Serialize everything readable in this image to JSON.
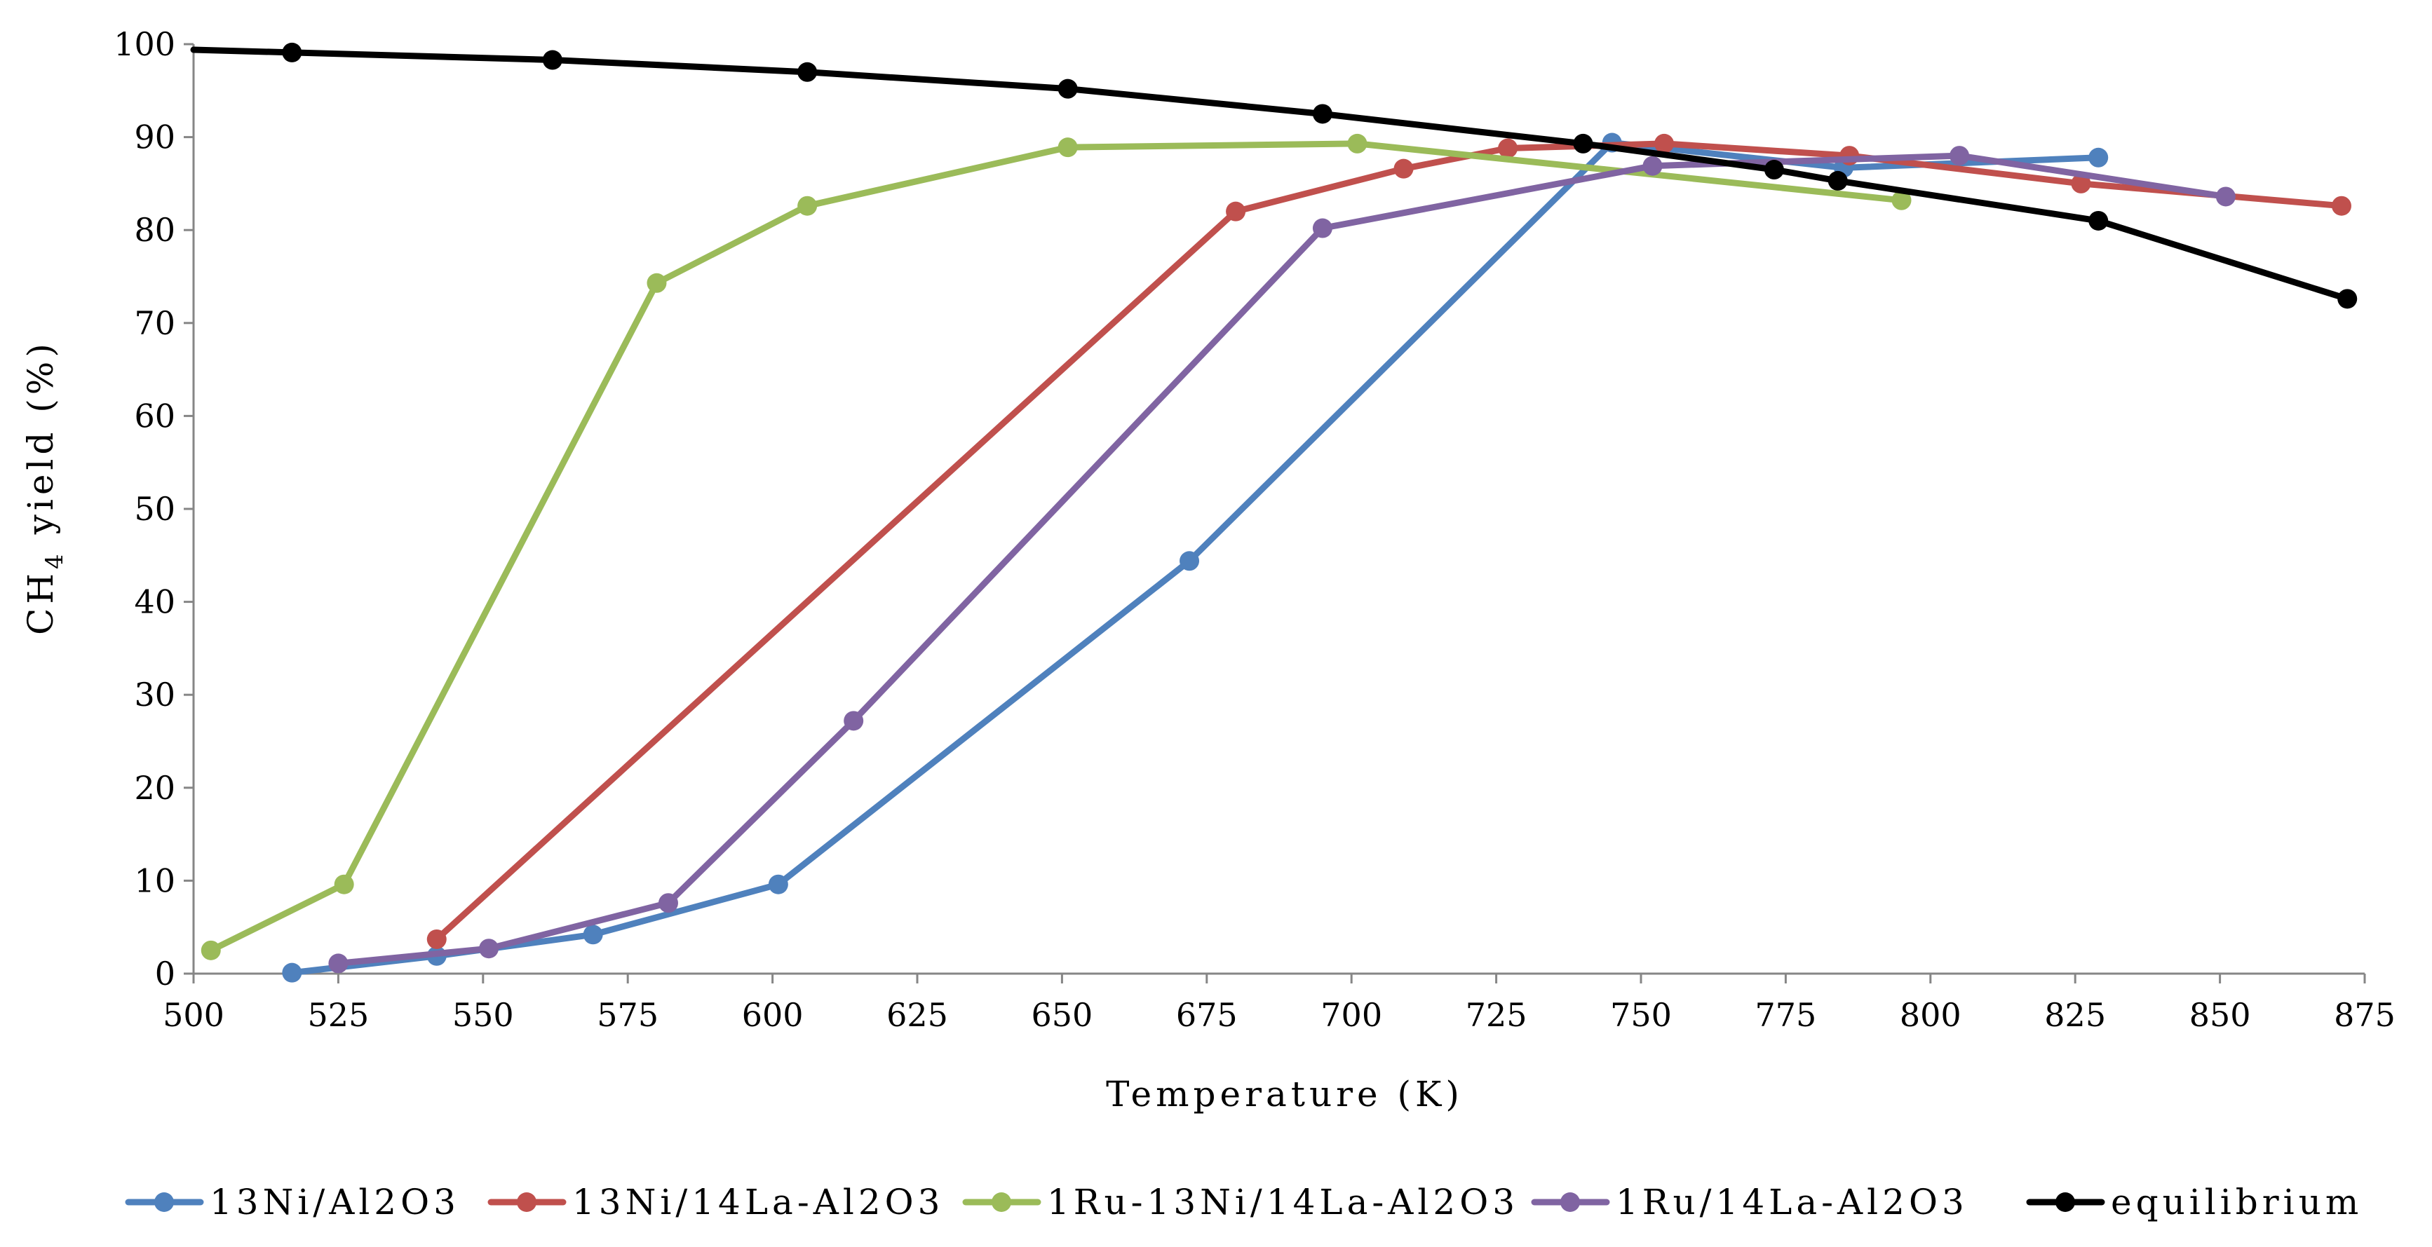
{
  "chart_data": {
    "type": "line",
    "title": "",
    "xlabel": "Temperature (K)",
    "ylabel": "CH4 yield (%)",
    "ylabel_main": "CH",
    "ylabel_sub": "4",
    "ylabel_rest": " yield (%)",
    "xlim": [
      500,
      875
    ],
    "ylim": [
      0,
      100
    ],
    "xticks": [
      500,
      525,
      550,
      575,
      600,
      625,
      650,
      675,
      700,
      725,
      750,
      775,
      800,
      825,
      850,
      875
    ],
    "yticks": [
      0,
      10,
      20,
      30,
      40,
      50,
      60,
      70,
      80,
      90,
      100
    ],
    "grid": false,
    "legend_position": "bottom",
    "series": [
      {
        "name": "13Ni/Al2O3",
        "color": "#4f81bd",
        "points": [
          [
            517,
            0.1
          ],
          [
            542,
            1.9
          ],
          [
            569,
            4.2
          ],
          [
            601,
            9.6
          ],
          [
            672,
            44.4
          ],
          [
            745,
            89.4
          ],
          [
            785,
            86.7
          ],
          [
            829,
            87.8
          ]
        ]
      },
      {
        "name": "13Ni/14La-Al2O3",
        "color": "#c0504d",
        "points": [
          [
            542,
            3.7
          ],
          [
            680,
            82.0
          ],
          [
            709,
            86.6
          ],
          [
            727,
            88.8
          ],
          [
            754,
            89.3
          ],
          [
            786,
            88.0
          ],
          [
            826,
            85.0
          ],
          [
            871,
            82.6
          ]
        ]
      },
      {
        "name": "1Ru-13Ni/14La-Al2O3",
        "color": "#9bbb59",
        "points": [
          [
            503,
            2.5
          ],
          [
            526,
            9.6
          ],
          [
            580,
            74.3
          ],
          [
            606,
            82.6
          ],
          [
            651,
            88.9
          ],
          [
            701,
            89.3
          ],
          [
            795,
            83.2
          ]
        ]
      },
      {
        "name": "1Ru/14La-Al2O3",
        "color": "#8064a2",
        "points": [
          [
            525,
            1.1
          ],
          [
            551,
            2.7
          ],
          [
            582,
            7.6
          ],
          [
            614,
            27.2
          ],
          [
            695,
            80.2
          ],
          [
            752,
            86.9
          ],
          [
            805,
            88.0
          ],
          [
            851,
            83.6
          ]
        ]
      },
      {
        "name": "equilibrium",
        "color": "#000000",
        "points": [
          [
            500,
            99.4
          ],
          [
            517,
            99.1
          ],
          [
            562,
            98.3
          ],
          [
            606,
            97.0
          ],
          [
            651,
            95.2
          ],
          [
            695,
            92.5
          ],
          [
            740,
            89.3
          ],
          [
            773,
            86.5
          ],
          [
            784,
            85.3
          ],
          [
            829,
            81.0
          ],
          [
            872,
            72.6
          ]
        ],
        "marker_points": [
          [
            517,
            99.1
          ],
          [
            562,
            98.3
          ],
          [
            606,
            97.0
          ],
          [
            651,
            95.2
          ],
          [
            695,
            92.5
          ],
          [
            740,
            89.3
          ],
          [
            773,
            86.5
          ],
          [
            784,
            85.3
          ],
          [
            829,
            81.0
          ],
          [
            872,
            72.6
          ]
        ]
      }
    ]
  }
}
